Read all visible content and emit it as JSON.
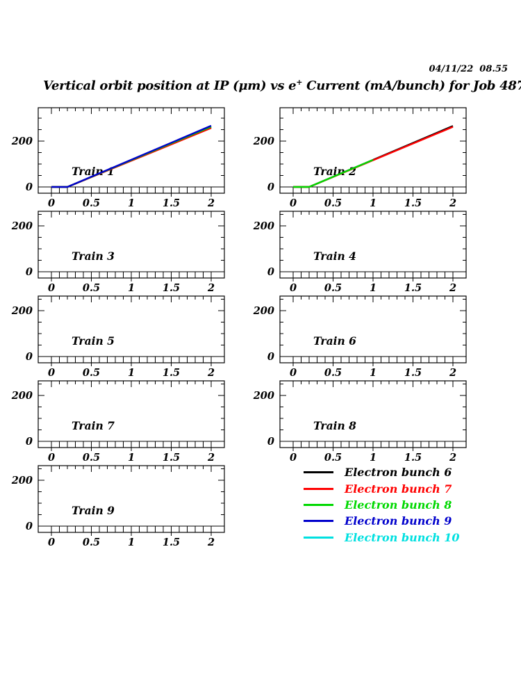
{
  "header": {
    "timestamp": "04/11/22  08.55",
    "title_pre": "Vertical orbit position at IP (μm) vs e",
    "title_sup": "+",
    "title_post": " Current (mA/bunch) for Job 487"
  },
  "chart_data": {
    "type": "line",
    "title": "Vertical orbit position at IP (μm) vs e+ Current (mA/bunch) for Job 487",
    "xlabel": "e+ Current (mA/bunch)",
    "ylabel": "Vertical orbit position at IP (μm)",
    "x_range": [
      0,
      2
    ],
    "x_ticks": [
      0,
      0.5,
      1,
      1.5,
      2
    ],
    "x_tick_labels": [
      "0",
      "0.5",
      "1",
      "1.5",
      "2"
    ],
    "x_minor_step": 0.1,
    "y_major_ticks": [
      0,
      200
    ],
    "y_tick_labels": [
      "0",
      "200"
    ],
    "y_minor_step": 50,
    "grid": false,
    "legend_position": "bottom-right",
    "panels": [
      {
        "label": "Train 1",
        "series": [
          {
            "name": "Electron bunch 6",
            "color": "#000000",
            "points": [
              [
                0,
                0
              ],
              [
                0.2,
                0
              ],
              [
                2,
                260
              ]
            ]
          },
          {
            "name": "Electron bunch 7",
            "color": "#ff0000",
            "points": [
              [
                0,
                0
              ],
              [
                0.2,
                0
              ],
              [
                2,
                257
              ]
            ]
          },
          {
            "name": "Electron bunch 8",
            "color": "#00d800",
            "points": [
              [
                0,
                0
              ],
              [
                0.2,
                0
              ],
              [
                2,
                263
              ]
            ]
          },
          {
            "name": "Electron bunch 9",
            "color": "#0000cc",
            "points": [
              [
                0,
                0
              ],
              [
                0.2,
                0
              ],
              [
                2,
                267
              ]
            ]
          }
        ]
      },
      {
        "label": "Train 2",
        "series": [
          {
            "name": "Electron bunch 6",
            "color": "#000000",
            "points": [
              [
                0,
                0
              ],
              [
                0.2,
                0
              ],
              [
                2,
                266
              ]
            ]
          },
          {
            "name": "Electron bunch 7",
            "color": "#ff0000",
            "points": [
              [
                0,
                0
              ],
              [
                0.2,
                0
              ],
              [
                2,
                262
              ]
            ]
          },
          {
            "name": "Electron bunch 8",
            "color": "#00d800",
            "points": [
              [
                0,
                0
              ],
              [
                0.2,
                0
              ],
              [
                1,
                118
              ]
            ]
          }
        ]
      },
      {
        "label": "Train 3",
        "series": []
      },
      {
        "label": "Train 4",
        "series": []
      },
      {
        "label": "Train 5",
        "series": []
      },
      {
        "label": "Train 6",
        "series": []
      },
      {
        "label": "Train 7",
        "series": []
      },
      {
        "label": "Train 8",
        "series": []
      },
      {
        "label": "Train 9",
        "series": []
      }
    ],
    "legend": [
      {
        "label": "Electron bunch 6",
        "color": "#000000"
      },
      {
        "label": "Electron bunch 7",
        "color": "#ff0000"
      },
      {
        "label": "Electron bunch 8",
        "color": "#00d800"
      },
      {
        "label": "Electron bunch 9",
        "color": "#0000cc"
      },
      {
        "label": "Electron bunch 10",
        "color": "#00e0e0"
      }
    ]
  }
}
